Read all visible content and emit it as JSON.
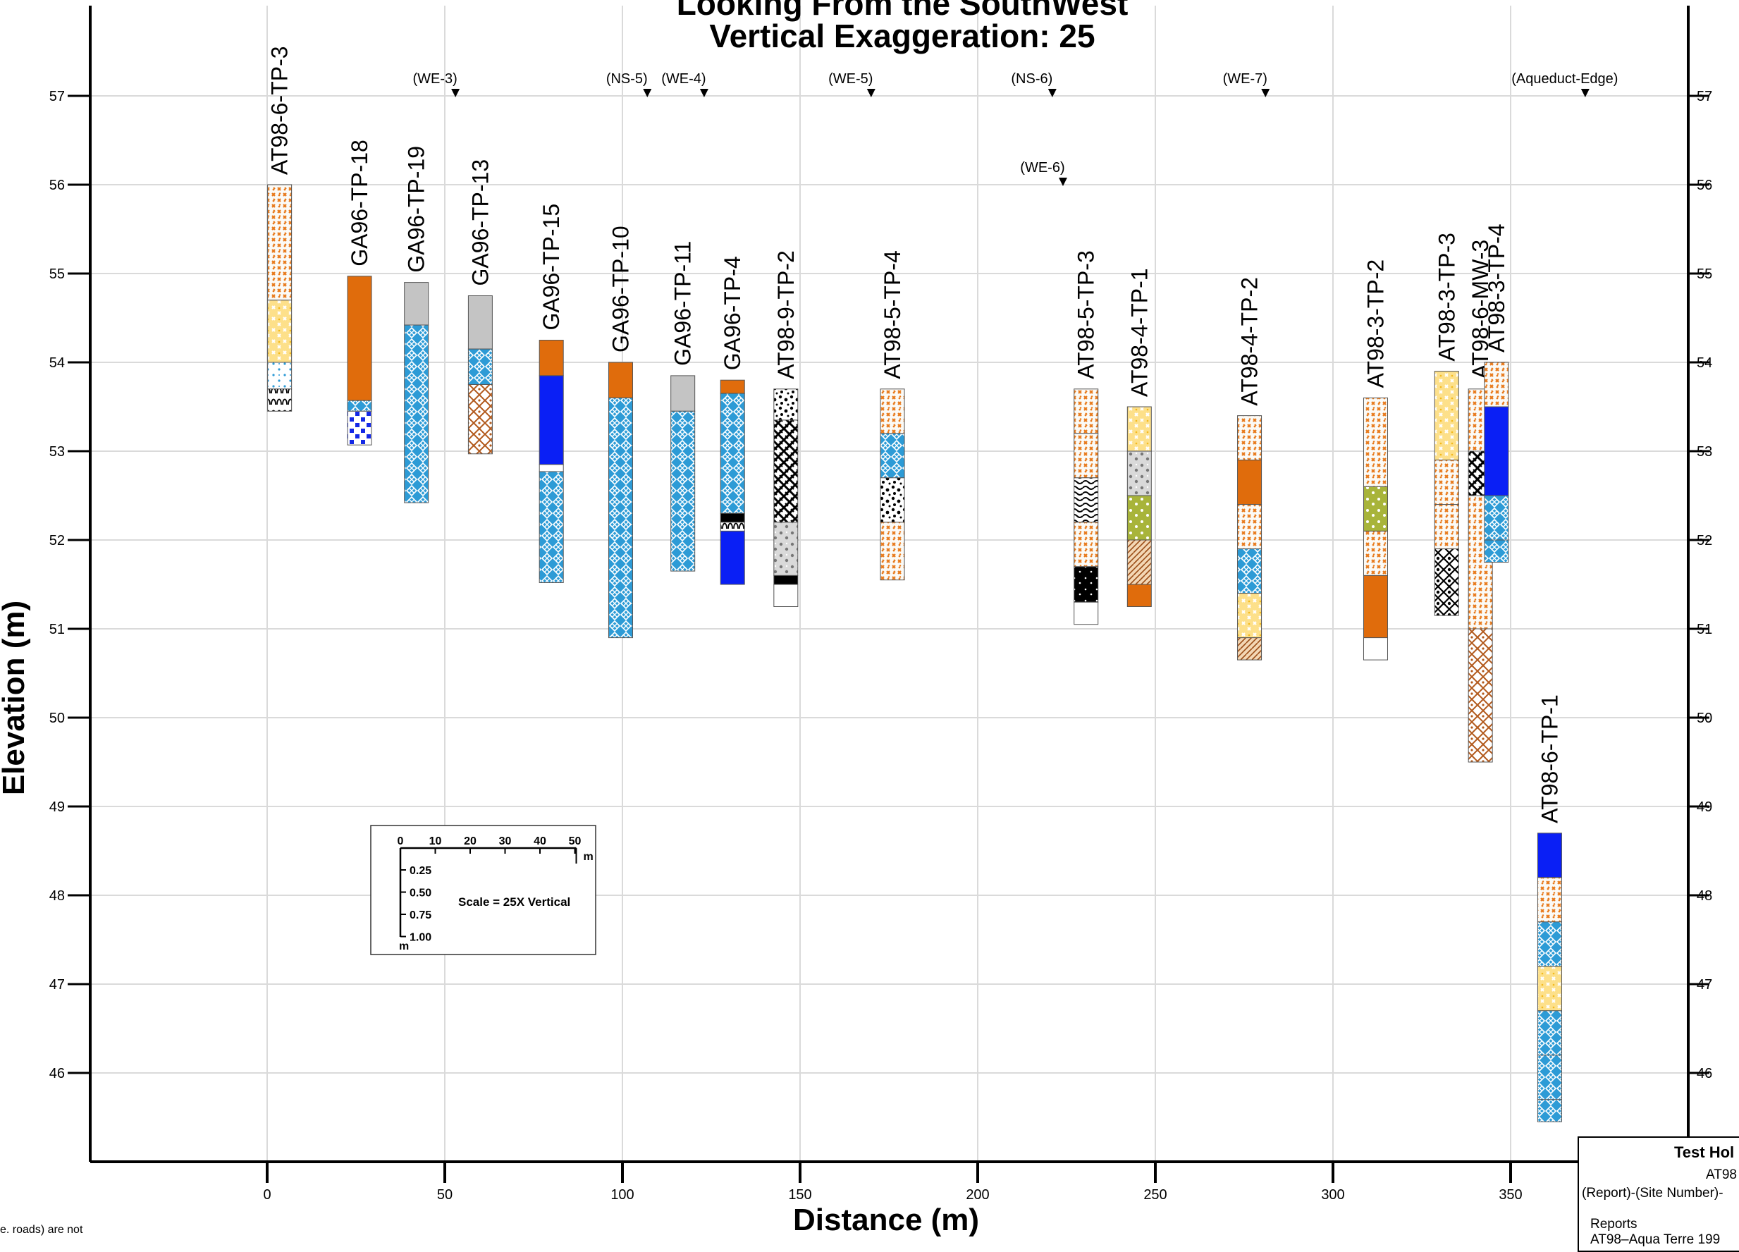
{
  "chart_data": {
    "type": "cross-section",
    "title_lines": [
      "Looking From the SouthWest",
      "Vertical Exaggeration: 25"
    ],
    "xlabel": "Distance (m)",
    "ylabel": "Elevation (m)",
    "xlim": [
      -50,
      400
    ],
    "ylim": [
      45,
      58
    ],
    "x_ticks": [
      0,
      50,
      100,
      150,
      200,
      250,
      300,
      350
    ],
    "y_ticks": [
      46,
      47,
      48,
      49,
      50,
      51,
      52,
      53,
      54,
      55,
      56,
      57
    ],
    "grid": true,
    "top_markers": [
      {
        "label": "(WE-3)",
        "x": 53,
        "elev": 57
      },
      {
        "label": "(NS-5)",
        "x": 107,
        "elev": 57
      },
      {
        "label": "(WE-4)",
        "x": 123,
        "elev": 57
      },
      {
        "label": "(WE-5)",
        "x": 170,
        "elev": 57
      },
      {
        "label": "(NS-6)",
        "x": 221,
        "elev": 57
      },
      {
        "label": "(WE-6)",
        "x": 224,
        "elev": 56
      },
      {
        "label": "(WE-7)",
        "x": 281,
        "elev": 57
      },
      {
        "label": "(Aqueduct-Edge)",
        "x": 371,
        "elev": 57
      }
    ],
    "holes": [
      {
        "name": "AT98-6-TP-3",
        "x": 3.5,
        "layers": [
          {
            "top": 56.0,
            "bot": 54.7,
            "pattern": "orange-cross"
          },
          {
            "top": 54.7,
            "bot": 54.0,
            "pattern": "yellow-cross"
          },
          {
            "top": 54.0,
            "bot": 53.7,
            "pattern": "blue-dots"
          },
          {
            "top": 53.7,
            "bot": 53.45,
            "pattern": "black-arch"
          }
        ]
      },
      {
        "name": "GA96-TP-18",
        "x": 26,
        "layers": [
          {
            "top": 54.97,
            "bot": 53.57,
            "pattern": "orange-solid"
          },
          {
            "top": 53.57,
            "bot": 53.45,
            "pattern": "blue-cross"
          },
          {
            "top": 53.45,
            "bot": 53.07,
            "pattern": "blue-check"
          }
        ]
      },
      {
        "name": "GA96-TP-19",
        "x": 42,
        "layers": [
          {
            "top": 54.9,
            "bot": 54.42,
            "pattern": "gray-solid"
          },
          {
            "top": 54.42,
            "bot": 52.42,
            "pattern": "blue-cross"
          }
        ]
      },
      {
        "name": "GA96-TP-13",
        "x": 60,
        "layers": [
          {
            "top": 54.75,
            "bot": 54.15,
            "pattern": "gray-solid"
          },
          {
            "top": 54.15,
            "bot": 53.75,
            "pattern": "blue-cross"
          },
          {
            "top": 53.75,
            "bot": 52.97,
            "pattern": "brown-diamond"
          }
        ]
      },
      {
        "name": "GA96-TP-15",
        "x": 80,
        "layers": [
          {
            "top": 54.25,
            "bot": 53.85,
            "pattern": "orange-solid"
          },
          {
            "top": 53.85,
            "bot": 52.85,
            "pattern": "blue-solid"
          },
          {
            "top": 52.85,
            "bot": 52.77,
            "pattern": "white"
          },
          {
            "top": 52.77,
            "bot": 51.52,
            "pattern": "blue-cross"
          }
        ]
      },
      {
        "name": "GA96-TP-10",
        "x": 99.5,
        "layers": [
          {
            "top": 54.0,
            "bot": 53.6,
            "pattern": "orange-solid"
          },
          {
            "top": 53.6,
            "bot": 50.9,
            "pattern": "blue-cross"
          }
        ]
      },
      {
        "name": "GA96-TP-11",
        "x": 117,
        "layers": [
          {
            "top": 53.85,
            "bot": 53.45,
            "pattern": "gray-solid"
          },
          {
            "top": 53.45,
            "bot": 51.65,
            "pattern": "blue-cross"
          }
        ]
      },
      {
        "name": "GA96-TP-4",
        "x": 131,
        "layers": [
          {
            "top": 53.8,
            "bot": 53.65,
            "pattern": "orange-solid"
          },
          {
            "top": 53.65,
            "bot": 52.3,
            "pattern": "blue-cross"
          },
          {
            "top": 52.3,
            "bot": 52.2,
            "pattern": "black-solid"
          },
          {
            "top": 52.2,
            "bot": 52.1,
            "pattern": "black-arch"
          },
          {
            "top": 52.1,
            "bot": 51.5,
            "pattern": "blue-solid"
          }
        ]
      },
      {
        "name": "AT98-9-TP-2",
        "x": 146,
        "layers": [
          {
            "top": 53.7,
            "bot": 53.35,
            "pattern": "black-dots"
          },
          {
            "top": 53.35,
            "bot": 52.2,
            "pattern": "black-weave"
          },
          {
            "top": 52.2,
            "bot": 51.6,
            "pattern": "gray-dots"
          },
          {
            "top": 51.6,
            "bot": 51.5,
            "pattern": "black-solid"
          },
          {
            "top": 51.5,
            "bot": 51.25,
            "pattern": "white"
          }
        ]
      },
      {
        "name": "AT98-5-TP-4",
        "x": 176,
        "layers": [
          {
            "top": 53.7,
            "bot": 53.2,
            "pattern": "orange-cross"
          },
          {
            "top": 53.2,
            "bot": 52.7,
            "pattern": "blue-cross"
          },
          {
            "top": 52.7,
            "bot": 52.2,
            "pattern": "black-dots"
          },
          {
            "top": 52.2,
            "bot": 51.55,
            "pattern": "orange-cross"
          }
        ]
      },
      {
        "name": "AT98-5-TP-3",
        "x": 230.5,
        "layers": [
          {
            "top": 53.7,
            "bot": 53.2,
            "pattern": "orange-cross"
          },
          {
            "top": 53.2,
            "bot": 52.7,
            "pattern": "orange-cross"
          },
          {
            "top": 52.7,
            "bot": 52.2,
            "pattern": "black-wave"
          },
          {
            "top": 52.2,
            "bot": 51.7,
            "pattern": "orange-cross"
          },
          {
            "top": 51.7,
            "bot": 51.3,
            "pattern": "black-dots-dense"
          },
          {
            "top": 51.3,
            "bot": 51.05,
            "pattern": "white"
          }
        ]
      },
      {
        "name": "AT98-4-TP-1",
        "x": 245.5,
        "layers": [
          {
            "top": 53.5,
            "bot": 53.0,
            "pattern": "yellow-cross"
          },
          {
            "top": 53.0,
            "bot": 52.5,
            "pattern": "gray-dots"
          },
          {
            "top": 52.5,
            "bot": 52.0,
            "pattern": "olive-dots"
          },
          {
            "top": 52.0,
            "bot": 51.5,
            "pattern": "brown-hatch"
          },
          {
            "top": 51.5,
            "bot": 51.25,
            "pattern": "orange-solid"
          }
        ]
      },
      {
        "name": "AT98-4-TP-2",
        "x": 276.5,
        "layers": [
          {
            "top": 53.4,
            "bot": 52.9,
            "pattern": "orange-cross"
          },
          {
            "top": 52.9,
            "bot": 52.4,
            "pattern": "orange-solid"
          },
          {
            "top": 52.4,
            "bot": 51.9,
            "pattern": "orange-cross"
          },
          {
            "top": 51.9,
            "bot": 51.4,
            "pattern": "blue-cross"
          },
          {
            "top": 51.4,
            "bot": 50.9,
            "pattern": "yellow-cross"
          },
          {
            "top": 50.9,
            "bot": 50.65,
            "pattern": "brown-hatch"
          }
        ]
      },
      {
        "name": "AT98-3-TP-2",
        "x": 312,
        "layers": [
          {
            "top": 53.6,
            "bot": 52.6,
            "pattern": "orange-cross"
          },
          {
            "top": 52.6,
            "bot": 52.1,
            "pattern": "olive-dots"
          },
          {
            "top": 52.1,
            "bot": 51.6,
            "pattern": "orange-cross"
          },
          {
            "top": 51.6,
            "bot": 50.9,
            "pattern": "orange-solid"
          },
          {
            "top": 50.9,
            "bot": 50.65,
            "pattern": "white"
          }
        ]
      },
      {
        "name": "AT98-3-TP-3",
        "x": 332,
        "layers": [
          {
            "top": 53.9,
            "bot": 52.9,
            "pattern": "yellow-cross"
          },
          {
            "top": 52.9,
            "bot": 52.4,
            "pattern": "orange-cross"
          },
          {
            "top": 52.4,
            "bot": 51.9,
            "pattern": "orange-cross"
          },
          {
            "top": 51.9,
            "bot": 51.15,
            "pattern": "black-diamond"
          }
        ]
      },
      {
        "name": "AT98-6-MW-3",
        "x": 341.5,
        "layers": [
          {
            "top": 53.7,
            "bot": 53.0,
            "pattern": "orange-cross"
          },
          {
            "top": 53.0,
            "bot": 52.5,
            "pattern": "black-weave"
          },
          {
            "top": 52.5,
            "bot": 51.0,
            "pattern": "orange-cross"
          },
          {
            "top": 51.0,
            "bot": 49.5,
            "pattern": "brown-diamond"
          }
        ]
      },
      {
        "name": "AT98-3-TP-4",
        "x": 346,
        "layers": [
          {
            "top": 54.0,
            "bot": 53.5,
            "pattern": "orange-cross"
          },
          {
            "top": 53.5,
            "bot": 52.5,
            "pattern": "blue-solid"
          },
          {
            "top": 52.5,
            "bot": 52.0,
            "pattern": "blue-cross"
          },
          {
            "top": 52.0,
            "bot": 51.75,
            "pattern": "blue-cross"
          }
        ]
      },
      {
        "name": "AT98-6-TP-1",
        "x": 361,
        "layers": [
          {
            "top": 48.7,
            "bot": 48.2,
            "pattern": "blue-solid"
          },
          {
            "top": 48.2,
            "bot": 47.7,
            "pattern": "orange-cross"
          },
          {
            "top": 47.7,
            "bot": 47.2,
            "pattern": "blue-cross"
          },
          {
            "top": 47.2,
            "bot": 46.7,
            "pattern": "yellow-cross"
          },
          {
            "top": 46.7,
            "bot": 46.2,
            "pattern": "blue-cross"
          },
          {
            "top": 46.2,
            "bot": 45.7,
            "pattern": "blue-cross"
          },
          {
            "top": 45.7,
            "bot": 45.45,
            "pattern": "blue-cross"
          }
        ]
      }
    ],
    "scale_legend": {
      "h_ticks": [
        "0",
        "10",
        "20",
        "30",
        "40",
        "50"
      ],
      "h_unit": "m",
      "v_ticks": [
        "0.25",
        "0.50",
        "0.75",
        "1.00"
      ],
      "v_unit": "m",
      "text": "Scale = 25X Vertical"
    }
  },
  "info_box": {
    "title": "Test Hol",
    "line1": "AT98",
    "line2": "(Report)-(Site Number)-",
    "line3": "Reports",
    "line4": "AT98–Aqua Terre 199"
  },
  "footnote": "e. roads) are not"
}
